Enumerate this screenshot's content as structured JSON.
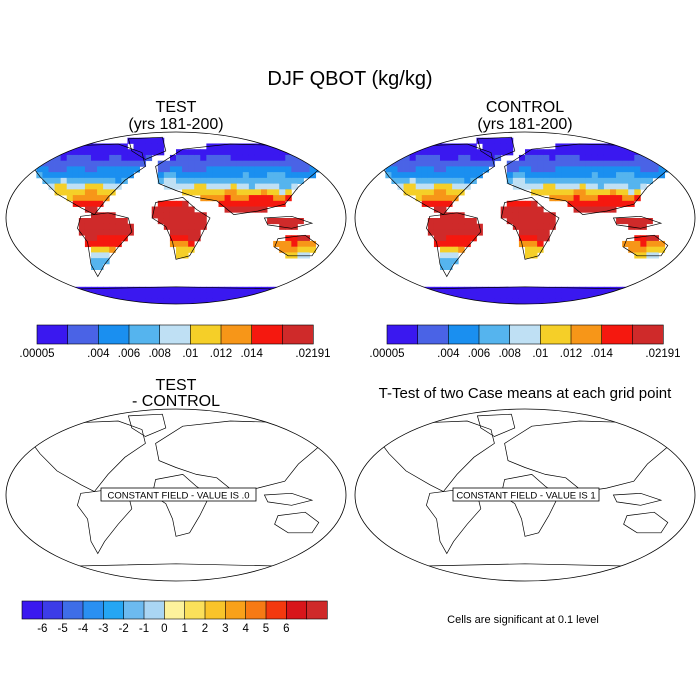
{
  "title": "DJF QBOT (kg/kg)",
  "panels": {
    "test": {
      "title_line1": "TEST",
      "title_line2": "(yrs 181-200)"
    },
    "control": {
      "title_line1": "CONTROL",
      "title_line2": "(yrs 181-200)"
    },
    "diff": {
      "title_line1": "TEST",
      "title_line2": "- CONTROL",
      "constant_text": "CONSTANT FIELD - VALUE IS .0"
    },
    "ttest": {
      "title": "T-Test of two Case means at each grid point",
      "constant_text": "CONSTANT FIELD - VALUE IS 1",
      "note": "Cells are significant at 0.1 level"
    }
  },
  "colorbar_top": {
    "colors": [
      "#3a18f0",
      "#4a63e6",
      "#1a8ff0",
      "#55b4ee",
      "#bfe0f4",
      "#f5cf28",
      "#f79618",
      "#f5180f",
      "#cf2a2a"
    ],
    "labels": [
      ".00005",
      ".004",
      ".006",
      ".008",
      ".01",
      ".012",
      ".014",
      ".02191"
    ]
  },
  "colorbar_bottom": {
    "colors": [
      "#3a18f0",
      "#3c3ce8",
      "#3e6ee8",
      "#2a90f2",
      "#25a6f4",
      "#6cbaf0",
      "#aad6f4",
      "#fdf29c",
      "#fbe05a",
      "#f9c42a",
      "#f8a11a",
      "#f77a14",
      "#f4390e",
      "#d8161b",
      "#cf2a2a"
    ],
    "labels": [
      "-6",
      "-5",
      "-4",
      "-3",
      "-2",
      "-1",
      "0",
      "1",
      "2",
      "3",
      "4",
      "5",
      "6"
    ]
  },
  "map_palette": {
    "ocean": "#ffffff",
    "polar": "#3a18f0",
    "north_high": "#4a63e6",
    "mid": "#1a8ff0",
    "sub": "#55b4ee",
    "pale": "#bfe0f4",
    "tropic_edge": "#f5cf28",
    "tropic_orange": "#f79618",
    "tropic": "#f5180f",
    "tropic_core": "#cf2a2a",
    "coast": "#000000"
  }
}
